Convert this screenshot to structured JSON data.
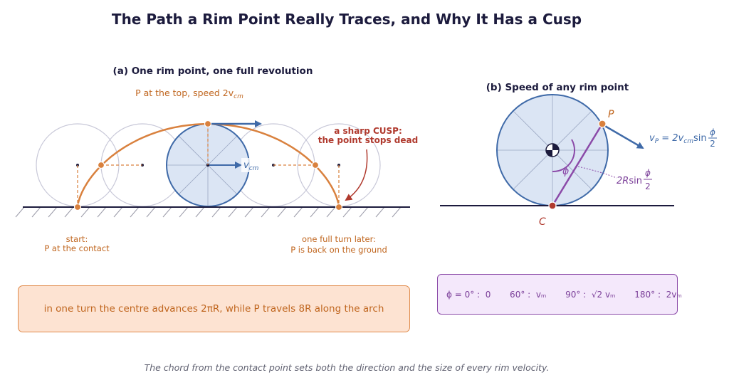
{
  "title": "The Path a Rim Point Really Traces, and Why It Has a Cusp",
  "panel_a": {
    "heading": "(a) One rim point, one full revolution",
    "top_label": "P at the top,  speed 2v",
    "top_label_sub": "cm",
    "vcm_label": "v",
    "vcm_sub": "cm",
    "cusp_line1": "a sharp CUSP:",
    "cusp_line2": "the point stops dead",
    "start_line1": "start:",
    "start_line2": "P at the contact",
    "end_line1": "one full turn later:",
    "end_line2": "P is back on the ground",
    "summary": "in one turn the centre advances 2πR, while P travels 8R along the arch"
  },
  "panel_b": {
    "heading": "(b) Speed of any rim point",
    "p_label": "P",
    "c_label": "C",
    "phi_label": "ϕ",
    "vp_prefix": "v",
    "vp_sub": "P",
    "vp_eq": " = 2v",
    "vp_eq_sub": "cm",
    "vp_sin": "sin",
    "frac_num": "ϕ",
    "frac_den": "2",
    "chord_prefix": "2R",
    "chord_sin": "sin",
    "table": "ϕ = 0° :  0       60° :  vₘ       90° :  √2 vₘ       180° :  2vₘ",
    "table_items": [
      {
        "angle": "ϕ = 0° :",
        "value": "0"
      },
      {
        "angle": "60° :",
        "value": "v_cm"
      },
      {
        "angle": "90° :",
        "value": "√2 v_cm"
      },
      {
        "angle": "180° :",
        "value": "2v_cm"
      }
    ]
  },
  "caption": "The chord from the contact point sets both the direction and the size of every rim velocity.",
  "colors": {
    "navy": "#1c1b3d",
    "orange": "#d9813e",
    "orange_text": "#c0661f",
    "blue": "#3f6aa8",
    "wheel_fill": "#dbe5f4",
    "ghost": "#c8c8d8",
    "red": "#b03a2e",
    "purple": "#8b4aa8"
  },
  "icons": [
    "center-of-mass-icon",
    "ground-hatch-icon"
  ]
}
